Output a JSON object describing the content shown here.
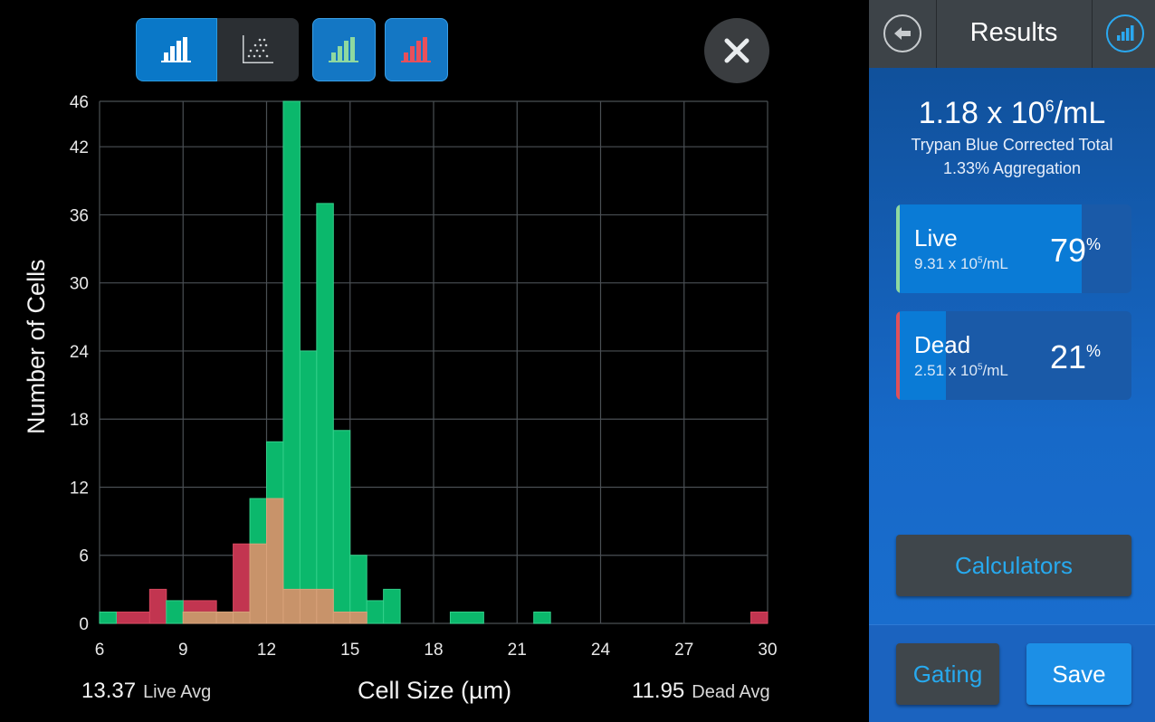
{
  "results": {
    "title": "Results",
    "concentration": {
      "base": "1.18 x 10",
      "exp": "6",
      "unit": "/mL"
    },
    "correction_label": "Trypan Blue Corrected Total",
    "aggregation": "1.33% Aggregation",
    "live": {
      "label": "Live",
      "conc_base": "9.31 x 10",
      "conc_exp": "5",
      "conc_unit": "/mL",
      "percent": "79",
      "percent_sign": "%",
      "fraction": 0.79,
      "color": "#8fd9a0"
    },
    "dead": {
      "label": "Dead",
      "conc_base": "2.51 x 10",
      "conc_exp": "5",
      "conc_unit": "/mL",
      "percent": "21",
      "percent_sign": "%",
      "fraction": 0.21,
      "color": "#e0505a"
    },
    "calculators_label": "Calculators",
    "gating_label": "Gating",
    "save_label": "Save"
  },
  "toolbar": {
    "buttons": [
      "histogram-icon",
      "scatter-icon",
      "live-histogram-icon",
      "dead-histogram-icon"
    ],
    "close_icon": "close-icon",
    "back_icon": "back-arrow-icon",
    "chart_icon": "chart-icon"
  },
  "footer": {
    "live_avg_value": "13.37",
    "live_avg_label": "Live Avg",
    "dead_avg_value": "11.95",
    "dead_avg_label": "Dead Avg"
  },
  "chart_data": {
    "type": "histogram",
    "xlabel": "Cell Size (µm)",
    "ylabel": "Number of Cells",
    "xlim": [
      6,
      30
    ],
    "ylim": [
      0,
      46
    ],
    "x_ticks": [
      6,
      9,
      12,
      15,
      18,
      21,
      24,
      27,
      30
    ],
    "y_ticks": [
      0,
      6,
      12,
      18,
      24,
      30,
      36,
      42,
      46
    ],
    "grid": true,
    "series": [
      {
        "name": "Live",
        "color": "#0bb86c",
        "bins": [
          [
            6,
            6.6,
            1
          ],
          [
            6.6,
            8.4,
            0
          ],
          [
            8.4,
            9,
            2
          ],
          [
            9,
            11.4,
            1
          ],
          [
            11.4,
            12,
            11
          ],
          [
            12,
            12.6,
            16
          ],
          [
            12.6,
            13.2,
            46
          ],
          [
            13.2,
            13.8,
            24
          ],
          [
            13.8,
            14.4,
            37
          ],
          [
            14.4,
            15,
            17
          ],
          [
            15,
            15.6,
            6
          ],
          [
            15.6,
            16.2,
            2
          ],
          [
            16.2,
            16.8,
            3
          ],
          [
            16.8,
            18.6,
            0
          ],
          [
            18.6,
            19.8,
            1
          ],
          [
            19.8,
            21.6,
            0
          ],
          [
            21.6,
            22.2,
            1
          ],
          [
            22.2,
            30,
            0
          ]
        ]
      },
      {
        "name": "Dead",
        "color": "#c23550",
        "bins": [
          [
            6.6,
            7.8,
            1
          ],
          [
            7.8,
            8.4,
            3
          ],
          [
            8.4,
            9,
            0
          ],
          [
            9,
            10.2,
            2
          ],
          [
            10.2,
            10.8,
            1
          ],
          [
            10.8,
            11.4,
            7
          ],
          [
            11.4,
            12,
            7
          ],
          [
            12,
            12.6,
            11
          ],
          [
            12.6,
            13.2,
            3
          ],
          [
            13.2,
            13.8,
            3
          ],
          [
            13.8,
            14.4,
            3
          ],
          [
            14.4,
            15.6,
            1
          ],
          [
            29.4,
            30,
            1
          ]
        ]
      }
    ]
  }
}
